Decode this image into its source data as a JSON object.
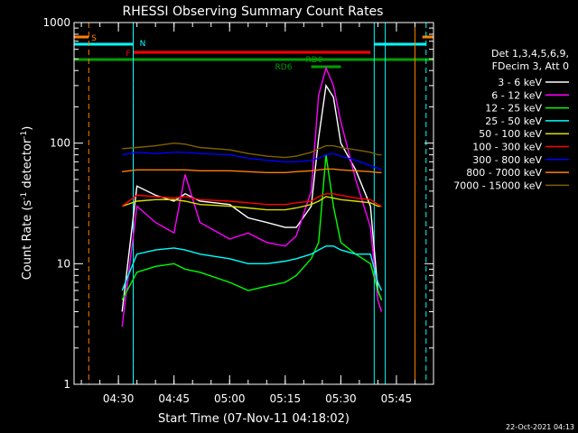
{
  "chart_data": {
    "type": "line",
    "title": "RHESSI Observing Summary Count Rates",
    "xlabel": "Start Time (07-Nov-11 04:18:02)",
    "ylabel_prefix": "Count Rate (s",
    "ylabel_sup": "-1",
    "ylabel_mid": " detector",
    "ylabel_end": ")",
    "y_scale": "log",
    "xlim": [
      "04:18:02",
      "05:55:00"
    ],
    "ylim": [
      1,
      1000
    ],
    "x_ticks": [
      "04:30",
      "04:45",
      "05:00",
      "05:15",
      "05:30",
      "05:45"
    ],
    "y_ticks": [
      "1",
      "10",
      "100",
      "1000"
    ],
    "legend_header": [
      "Det 1,3,4,5,6,9,",
      "FDecim 3, Att 0"
    ],
    "legend_position": "right",
    "timestamp": "22-Oct-2021 04:13",
    "flag_bars": [
      {
        "label": "S",
        "color": "#ff8000",
        "segments": [
          [
            "04:18",
            "04:22"
          ],
          [
            "05:52",
            "05:55"
          ]
        ]
      },
      {
        "label": "N",
        "color": "#00ffff",
        "segments": [
          [
            "04:18",
            "04:34"
          ],
          [
            "05:39",
            "05:53"
          ]
        ]
      },
      {
        "label": "F",
        "color": "#ff0000",
        "segments": [
          [
            "04:34",
            "05:38"
          ]
        ]
      },
      {
        "label": "RD0",
        "color": "#00a000",
        "segments": [
          [
            "05:24",
            "05:33"
          ]
        ]
      },
      {
        "label": "RD6",
        "color": "#00a000",
        "segments": [
          [
            "05:22",
            "05:30"
          ]
        ]
      },
      {
        "label": "",
        "color": "#00a000",
        "segments": [
          [
            "04:18",
            "05:55"
          ]
        ]
      }
    ],
    "vertical_markers": [
      {
        "time": "04:22",
        "color": "#ff8000",
        "style": "dashed"
      },
      {
        "time": "04:34",
        "color": "#00ffff",
        "style": "dashed"
      },
      {
        "time": "05:39",
        "color": "#00ffff",
        "style": "solid"
      },
      {
        "time": "05:42",
        "color": "#00ffff",
        "style": "solid"
      },
      {
        "time": "05:50",
        "color": "#ff8000",
        "style": "solid"
      },
      {
        "time": "05:53",
        "color": "#00ffff",
        "style": "dashed"
      },
      {
        "time": "04:34",
        "color": "#00ffff",
        "style": "solid"
      }
    ],
    "x_times": [
      "04:31",
      "04:35",
      "04:40",
      "04:45",
      "04:48",
      "04:52",
      "05:00",
      "05:05",
      "05:10",
      "05:15",
      "05:18",
      "05:22",
      "05:24",
      "05:26",
      "05:28",
      "05:30",
      "05:34",
      "05:38",
      "05:40",
      "05:41"
    ],
    "series": [
      {
        "name": "3 - 6 keV",
        "color": "#ffffff",
        "values": [
          4,
          44,
          37,
          33,
          38,
          33,
          31,
          24,
          22,
          20,
          20,
          30,
          110,
          300,
          240,
          100,
          60,
          30,
          6,
          5
        ]
      },
      {
        "name": "6 - 12 keV",
        "color": "#ff00ff",
        "values": [
          3,
          30,
          22,
          18,
          55,
          22,
          16,
          18,
          15,
          14,
          17,
          40,
          250,
          420,
          300,
          150,
          50,
          20,
          5,
          4
        ]
      },
      {
        "name": "12 - 25 keV",
        "color": "#00ff00",
        "values": [
          5,
          8.5,
          9.5,
          10,
          9,
          8.5,
          7,
          6,
          6.5,
          7,
          8,
          11,
          15,
          80,
          30,
          15,
          12,
          10,
          6,
          5
        ]
      },
      {
        "name": "25 - 50 keV",
        "color": "#00ffff",
        "values": [
          6,
          12,
          13,
          13.5,
          13,
          12,
          11,
          10,
          10,
          10.5,
          11,
          12,
          13,
          14,
          14,
          13,
          12,
          12,
          7,
          6
        ]
      },
      {
        "name": "50 - 100 keV",
        "color": "#dddd00",
        "values": [
          30,
          33,
          34,
          34,
          33,
          31,
          30,
          29,
          28,
          28,
          29,
          31,
          33,
          36,
          35,
          34,
          33,
          32,
          30,
          30
        ]
      },
      {
        "name": "100 - 300 keV",
        "color": "#ff0000",
        "values": [
          30,
          37,
          36,
          35,
          36,
          34,
          33,
          32,
          31,
          31,
          32,
          33,
          36,
          38,
          38,
          37,
          35,
          34,
          31,
          30
        ]
      },
      {
        "name": "300 - 800 keV",
        "color": "#0000ff",
        "values": [
          80,
          84,
          82,
          84,
          84,
          82,
          80,
          75,
          72,
          70,
          70,
          72,
          75,
          80,
          82,
          78,
          72,
          65,
          62,
          60
        ]
      },
      {
        "name": "800 - 7000 keV",
        "color": "#ff8000",
        "values": [
          58,
          60,
          60,
          60,
          60,
          59,
          59,
          58,
          57,
          57,
          58,
          59,
          60,
          61,
          61,
          60,
          59,
          58,
          57,
          57
        ]
      },
      {
        "name": "7000 - 15000 keV",
        "color": "#806000",
        "values": [
          90,
          92,
          95,
          100,
          98,
          92,
          88,
          82,
          78,
          76,
          78,
          84,
          90,
          95,
          95,
          92,
          88,
          84,
          80,
          80
        ]
      }
    ]
  }
}
